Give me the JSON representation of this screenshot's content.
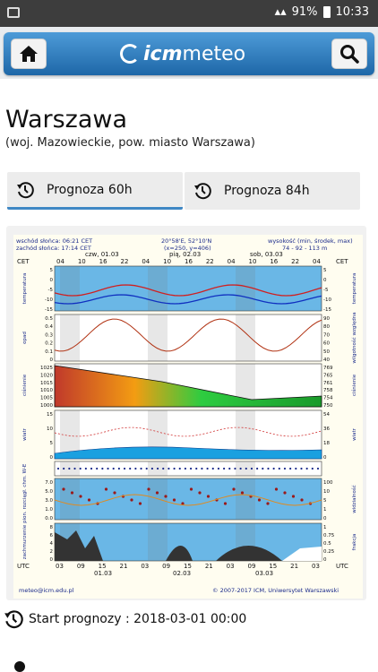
{
  "status": {
    "battery": "91%",
    "time": "10:33"
  },
  "header": {
    "logo_icm": "icm",
    "logo_meteo": "meteo",
    "home_icon": "home-icon",
    "search_icon": "search-icon"
  },
  "location": {
    "city": "Warszawa",
    "region": "(woj. Mazowieckie, pow. miasto Warszawa)"
  },
  "tabs": [
    {
      "label": "Prognoza 60h",
      "selected": true
    },
    {
      "label": "Prognoza 84h",
      "selected": false
    }
  ],
  "meteogram": {
    "sunrise": "wschód słońca: 06:21 CET",
    "sunset": "zachód słońca: 17:14 CET",
    "coords": "20°58'E, 52°10'N",
    "grid": "(x=250, y=406)",
    "altitude_label": "wysokość (min, środek, max)",
    "altitude_values": "74 - 92 - 113 m",
    "days_top": [
      "czw, 01.03",
      "pią, 02.03",
      "sob, 03.03"
    ],
    "hours_top": [
      "04",
      "10",
      "16",
      "22",
      "04",
      "10",
      "16",
      "22",
      "04",
      "10",
      "16",
      "22",
      "04"
    ],
    "cet_label": "CET",
    "utc_label": "UTC",
    "hours_bottom": [
      "03",
      "09",
      "15",
      "21",
      "03",
      "09",
      "15",
      "21",
      "03",
      "09",
      "15",
      "21",
      "03"
    ],
    "days_bottom": [
      "01.03",
      "02.03",
      "03.03"
    ],
    "panels": [
      {
        "left": "temperatura\n(°C)",
        "right": "temperatura\n(°C)",
        "left_ticks": [
          "5",
          "0",
          "-5",
          "-10",
          "-15"
        ],
        "right_ticks": [
          "5",
          "0",
          "-5",
          "-10",
          "-15"
        ]
      },
      {
        "left": "opad\n(mm/h, kg/m²/h)",
        "right": "wilgotność względna\n(%)",
        "left_ticks": [
          "0.5",
          "0.4",
          "0.3",
          "0.2",
          "0.1",
          "0"
        ],
        "right_ticks": [
          "90",
          "80",
          "70",
          "60",
          "50",
          "40"
        ]
      },
      {
        "left": "ciśnienie\n(hPa)",
        "right": "ciśnienie\n(mm Hg)",
        "left_ticks": [
          "1025",
          "1020",
          "1015",
          "1010",
          "1005",
          "1000"
        ],
        "right_ticks": [
          "769",
          "765",
          "761",
          "758",
          "754",
          "750"
        ]
      },
      {
        "left": "wiatr\n(m/s)",
        "right": "wiatr\n(km/h)",
        "left_ticks": [
          "15",
          "10",
          "5",
          "0"
        ],
        "right_ticks": [
          "54",
          "36",
          "18",
          "0"
        ]
      },
      {
        "left": "W-E",
        "right": "",
        "left_ticks": [],
        "right_ticks": []
      },
      {
        "left": "pion. rozciągł. chm.\n(km)",
        "right": "widzialność\n(km)",
        "left_ticks": [
          "7.0",
          "5.0",
          "3.0",
          "1.0",
          "0.0"
        ],
        "right_ticks": [
          "100",
          "10",
          "5",
          "1",
          "0"
        ]
      },
      {
        "left": "zachmurzenie\n(oktanty)",
        "right": "frakcja\nmgła",
        "left_ticks": [
          "8",
          "6",
          "4",
          "2",
          "0"
        ],
        "right_ticks": [
          "1",
          "0.75",
          "0.5",
          "0.25",
          "0"
        ]
      }
    ],
    "footer_left": "meteo@icm.edu.pl",
    "footer_right": "© 2007-2017 ICM, Uniwersytet Warszawski"
  },
  "start": {
    "text": "Start prognozy : 2018-03-01 00:00"
  }
}
